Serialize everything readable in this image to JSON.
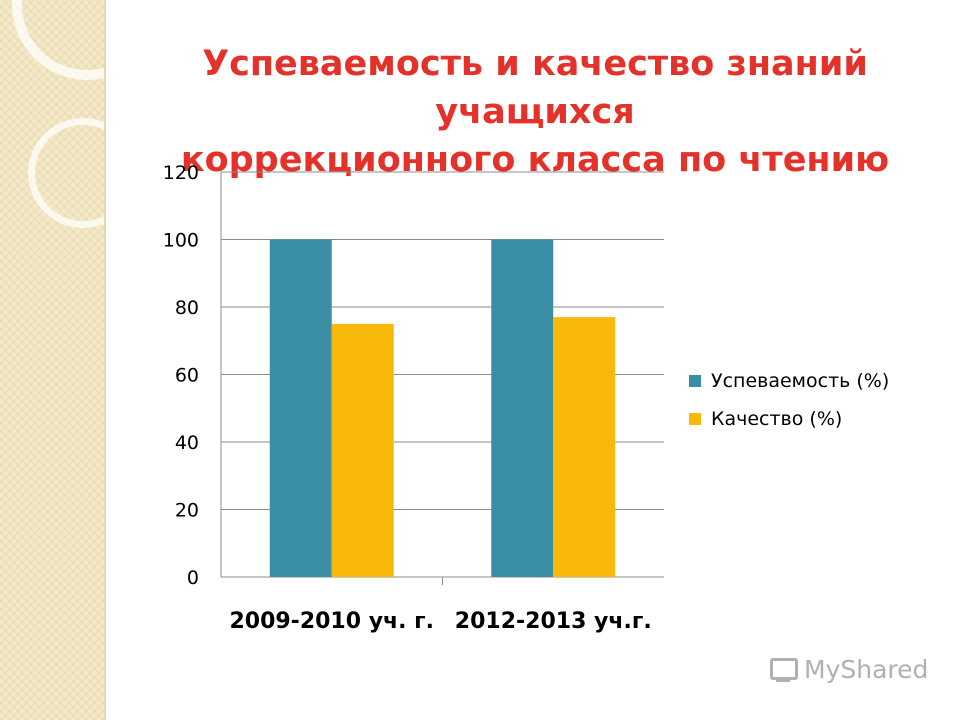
{
  "title": {
    "line1": "Успеваемость и качество знаний учащихся",
    "line2": "коррекционного класса по чтению"
  },
  "colors": {
    "title": "#e4322b",
    "series1": "#3a8fa6",
    "series2": "#f9b90b",
    "grid": "#8c8c8c"
  },
  "watermark": {
    "text": "MyShared",
    "icon": "monitor-logo-icon"
  },
  "chart_data": {
    "type": "bar",
    "categories": [
      "2009-2010 уч. г.",
      "2012-2013 уч.г."
    ],
    "series": [
      {
        "name": "Успеваемость (%)",
        "values": [
          100,
          100
        ]
      },
      {
        "name": "Качество (%)",
        "values": [
          75,
          77
        ]
      }
    ],
    "ylim": [
      0,
      120
    ],
    "yticks": [
      0,
      20,
      40,
      60,
      80,
      100,
      120
    ],
    "grid": true,
    "legend_position": "right"
  }
}
